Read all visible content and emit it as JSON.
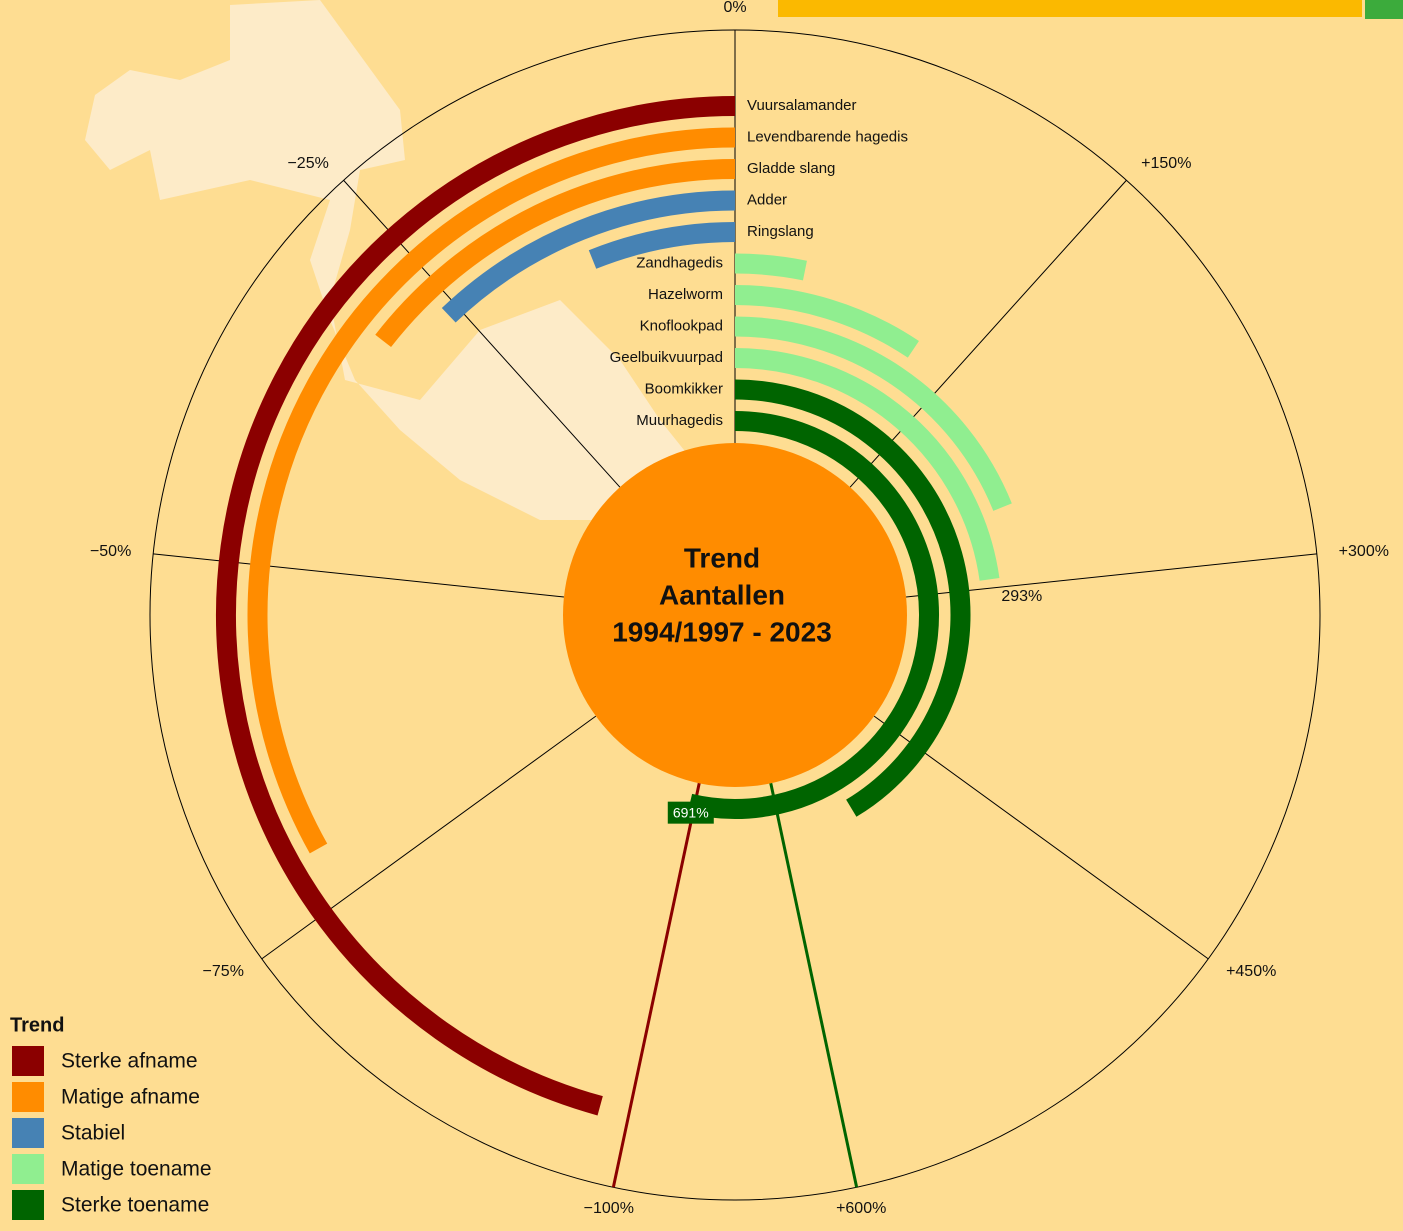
{
  "chart_data": {
    "type": "radial_bar",
    "center_title": [
      "Trend",
      "Aantallen",
      "1994/1997 - 2023"
    ],
    "categories": [
      "Vuursalamander",
      "Levendbarende hagedis",
      "Gladde slang",
      "Adder",
      "Ringslang",
      "Zandhagedis",
      "Hazelworm",
      "Knoflookpad",
      "Geelbuikvuurpad",
      "Boomkikker",
      "Muurhagedis"
    ],
    "series": [
      {
        "name": "Sterke afname",
        "color": "#8b0000",
        "values": [
          -98,
          null,
          null,
          null,
          null,
          null,
          null,
          null,
          null,
          null,
          null
        ]
      },
      {
        "name": "Matige afname",
        "color": "#ff8c00",
        "values": [
          null,
          -71,
          -31,
          null,
          null,
          null,
          null,
          null,
          null,
          null,
          null
        ]
      },
      {
        "name": "Stabiel",
        "color": "#4682b4",
        "values": [
          null,
          null,
          null,
          -26,
          -13,
          null,
          null,
          null,
          null,
          null,
          null
        ]
      },
      {
        "name": "Matige toename",
        "color": "#90ee90",
        "values": [
          null,
          null,
          null,
          null,
          null,
          41,
          121,
          243,
          293,
          null,
          null
        ],
        "value_labels": [
          null,
          null,
          null,
          null,
          null,
          null,
          null,
          null,
          "293%",
          null,
          null
        ]
      },
      {
        "name": "Sterke toename",
        "color": "#006400",
        "values": [
          null,
          null,
          null,
          null,
          null,
          null,
          null,
          null,
          null,
          532,
          691
        ],
        "value_labels": [
          null,
          null,
          null,
          null,
          null,
          null,
          null,
          null,
          null,
          null,
          "691%"
        ]
      }
    ],
    "neg_axis": {
      "lim": [
        0,
        -100
      ],
      "ticks": [
        {
          "value": 0,
          "label": "0%"
        },
        {
          "value": -25,
          "label": "−25%"
        },
        {
          "value": -50,
          "label": "−50%"
        },
        {
          "value": -75,
          "label": "−75%"
        },
        {
          "value": -100,
          "label": "−100%"
        }
      ]
    },
    "pos_axis": {
      "lim": [
        0,
        600
      ],
      "ticks": [
        {
          "value": 150,
          "label": "+150%"
        },
        {
          "value": 300,
          "label": "+300%"
        },
        {
          "value": 450,
          "label": "+450%"
        },
        {
          "value": 600,
          "label": "+600%"
        }
      ]
    },
    "legend": {
      "title": "Trend",
      "position": "bottom-left"
    }
  }
}
